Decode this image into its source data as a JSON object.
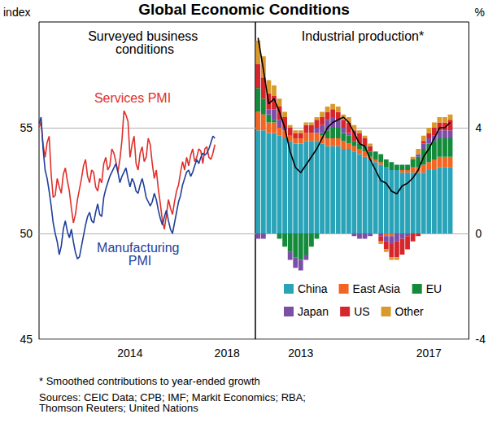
{
  "title": "Global Economic Conditions",
  "footnote": "* Smoothed contributions to year-ended growth",
  "sources": "Sources: CEIC Data; CPB; IMF; Markit Economics; RBA; Thomson Reuters; United Nations",
  "chart_data": [
    {
      "type": "line",
      "title": "Surveyed business conditions",
      "y_label": "index",
      "categories": [
        null,
        null,
        null,
        null,
        null,
        null,
        null,
        null,
        null,
        null,
        null,
        null,
        null,
        null,
        null,
        null,
        null,
        null,
        null,
        null,
        null,
        null,
        null,
        null,
        null,
        null,
        null,
        null,
        null,
        null,
        null,
        null,
        null,
        null,
        null,
        null,
        null,
        null,
        null,
        null,
        null,
        null,
        null,
        null,
        null,
        "2014",
        null,
        null,
        null,
        null,
        null,
        null,
        null,
        null,
        null,
        null,
        null,
        null,
        null,
        null,
        null,
        null,
        null,
        null,
        null,
        null,
        null,
        null,
        null,
        null,
        null,
        null,
        null,
        null,
        null,
        null,
        null,
        null,
        null,
        null,
        null,
        null,
        null,
        null,
        null,
        null,
        null,
        null,
        null,
        null,
        null,
        null,
        null,
        "2018",
        null,
        null,
        null,
        null,
        null,
        null,
        null,
        null,
        null,
        null,
        null,
        null,
        null,
        null
      ],
      "series": [
        {
          "name": "Services PMI",
          "color": "#e0302b",
          "values": [
            55.0,
            55.3,
            54.2,
            53.6,
            54.3,
            54.6,
            52.8,
            51.7,
            51.8,
            52.6,
            52.2,
            51.9,
            52.8,
            53.1,
            52.5,
            52.0,
            51.2,
            50.5,
            50.9,
            51.6,
            52.1,
            52.6,
            53.2,
            53.5,
            52.7,
            52.4,
            53.0,
            52.9,
            52.2,
            52.0,
            52.6,
            52.4,
            53.3,
            53.6,
            53.0,
            53.2,
            54.0,
            53.8,
            53.4,
            52.9,
            53.5,
            54.4,
            55.8,
            55.6,
            55.3,
            53.6,
            54.2,
            54.6,
            53.3,
            53.0,
            53.8,
            54.1,
            53.4,
            53.6,
            54.5,
            54.2,
            53.3,
            52.6,
            53.0,
            52.1,
            51.4,
            50.6,
            50.2,
            50.9,
            51.6,
            51.2,
            50.9,
            51.5,
            52.0,
            52.3,
            52.9,
            53.4,
            53.0,
            53.6,
            53.2,
            53.7,
            54.0,
            53.4,
            53.6,
            54.0,
            53.9,
            53.3,
            54.0,
            54.1,
            53.6,
            53.5,
            53.8,
            54.2,
            null,
            null,
            null,
            null,
            null,
            null,
            null,
            null,
            null,
            null,
            null,
            null,
            null,
            null,
            null,
            null,
            null,
            null,
            null,
            null
          ]
        },
        {
          "name": "Manufacturing PMI",
          "color": "#1f3f99",
          "values": [
            55.2,
            55.5,
            54.0,
            53.0,
            52.6,
            52.0,
            51.3,
            50.5,
            50.0,
            49.6,
            49.0,
            49.4,
            50.2,
            50.6,
            50.1,
            49.8,
            50.2,
            49.6,
            49.1,
            48.8,
            48.9,
            49.4,
            49.9,
            50.4,
            50.8,
            51.0,
            50.6,
            50.5,
            51.0,
            51.4,
            50.9,
            50.8,
            51.7,
            52.1,
            52.4,
            52.7,
            52.9,
            53.1,
            53.3,
            52.9,
            52.4,
            52.7,
            52.9,
            53.1,
            52.6,
            52.2,
            52.6,
            52.4,
            52.0,
            51.9,
            52.3,
            52.6,
            52.2,
            51.7,
            51.5,
            51.3,
            51.5,
            51.9,
            51.6,
            51.1,
            50.7,
            50.4,
            50.8,
            51.1,
            50.6,
            50.2,
            50.0,
            50.5,
            51.0,
            51.5,
            51.8,
            52.3,
            52.6,
            52.9,
            53.0,
            52.7,
            52.9,
            53.2,
            53.5,
            53.3,
            53.6,
            53.8,
            53.7,
            53.8,
            54.0,
            54.3,
            54.6,
            54.5,
            null,
            null,
            null,
            null,
            null,
            null,
            null,
            null,
            null,
            null,
            null,
            null,
            null,
            null,
            null,
            null,
            null,
            null,
            null,
            null
          ]
        }
      ],
      "ylim": [
        45,
        60
      ],
      "yticks": [
        45,
        50,
        55
      ],
      "grid": true
    },
    {
      "type": "bar",
      "title": "Industrial production*",
      "y_label": "%",
      "categories": [
        null,
        null,
        null,
        null,
        null,
        null,
        null,
        null,
        "2013",
        null,
        null,
        null,
        null,
        null,
        null,
        null,
        null,
        null,
        null,
        null,
        null,
        null,
        null,
        null,
        null,
        null,
        null,
        null,
        null,
        null,
        null,
        null,
        "2017",
        null,
        null,
        null,
        null,
        null,
        null,
        null
      ],
      "series": [
        {
          "name": "China",
          "color": "#29a3b8",
          "values": [
            3.9,
            3.9,
            3.8,
            3.8,
            3.7,
            3.6,
            3.5,
            3.4,
            3.4,
            3.5,
            3.5,
            3.5,
            3.4,
            3.3,
            3.3,
            3.3,
            3.2,
            3.2,
            3.1,
            3.0,
            2.9,
            2.8,
            2.7,
            2.6,
            2.5,
            2.4,
            2.4,
            2.3,
            2.3,
            2.3,
            2.3,
            2.3,
            2.4,
            2.4,
            2.5,
            2.5,
            2.5,
            null,
            null,
            null
          ]
        },
        {
          "name": "East Asia",
          "color": "#f26522",
          "values": [
            0.7,
            0.6,
            0.4,
            0.4,
            0.3,
            0.3,
            0.2,
            0.2,
            0.2,
            0.3,
            0.3,
            0.3,
            0.3,
            0.3,
            0.3,
            0.3,
            0.3,
            0.2,
            0.2,
            0.2,
            0.2,
            0.1,
            0.1,
            0.1,
            -0.1,
            -0.1,
            0.0,
            0.1,
            0.1,
            0.2,
            0.2,
            0.3,
            0.3,
            0.4,
            0.4,
            0.4,
            0.4,
            null,
            null,
            null
          ]
        },
        {
          "name": "EU",
          "color": "#138b3b",
          "values": [
            0.9,
            0.6,
            0.3,
            0.1,
            -0.2,
            -0.5,
            -0.7,
            -0.9,
            -1.0,
            -0.8,
            -0.5,
            -0.2,
            0.1,
            0.3,
            0.4,
            0.4,
            0.3,
            0.3,
            0.2,
            0.2,
            0.2,
            0.2,
            0.3,
            0.3,
            0.3,
            0.3,
            0.2,
            0.2,
            0.2,
            0.3,
            0.4,
            0.6,
            0.7,
            0.7,
            0.7,
            0.7,
            0.7,
            null,
            null,
            null
          ]
        },
        {
          "name": "Japan",
          "color": "#7b4ea8",
          "values": [
            -0.2,
            -0.2,
            0.2,
            0.4,
            0.3,
            0.1,
            -0.3,
            -0.4,
            -0.4,
            -0.2,
            0.0,
            0.2,
            0.3,
            0.4,
            0.4,
            0.3,
            0.2,
            0.1,
            -0.1,
            -0.2,
            -0.2,
            -0.1,
            0.0,
            -0.1,
            -0.2,
            -0.3,
            -0.3,
            -0.2,
            -0.1,
            0.0,
            0.1,
            0.2,
            0.2,
            0.2,
            0.3,
            0.3,
            0.3,
            null,
            null,
            null
          ]
        },
        {
          "name": "US",
          "color": "#d7262b",
          "values": [
            0.9,
            0.8,
            0.6,
            0.5,
            0.5,
            0.4,
            0.3,
            0.2,
            0.2,
            0.3,
            0.3,
            0.3,
            0.3,
            0.3,
            0.3,
            0.3,
            0.3,
            0.4,
            0.4,
            0.4,
            0.3,
            0.2,
            0.0,
            -0.2,
            -0.3,
            -0.5,
            -0.6,
            -0.6,
            -0.5,
            -0.3,
            -0.1,
            0.1,
            0.2,
            0.3,
            0.3,
            0.3,
            0.4,
            null,
            null,
            null
          ]
        },
        {
          "name": "Other",
          "color": "#d99a2b",
          "values": [
            0.9,
            0.8,
            0.5,
            0.4,
            0.3,
            0.2,
            0.1,
            0.1,
            0.1,
            0.1,
            0.1,
            0.1,
            0.2,
            0.2,
            0.2,
            0.2,
            0.2,
            0.2,
            0.2,
            0.1,
            0.1,
            0.1,
            0.0,
            -0.1,
            -0.1,
            -0.1,
            -0.1,
            0.0,
            0.0,
            0.1,
            0.2,
            0.2,
            0.2,
            0.2,
            0.2,
            0.2,
            0.2,
            null,
            null,
            null
          ]
        },
        {
          "type": "line",
          "color": "#000000",
          "values": [
            7.4,
            6.2,
            4.9,
            5.1,
            4.6,
            4.0,
            3.1,
            2.5,
            2.3,
            2.6,
            2.9,
            3.2,
            3.6,
            4.0,
            4.2,
            4.3,
            4.4,
            4.2,
            3.8,
            3.4,
            3.3,
            2.8,
            2.4,
            2.0,
            1.9,
            1.6,
            1.5,
            1.8,
            1.9,
            2.1,
            2.4,
            2.9,
            3.2,
            3.6,
            4.0,
            4.0,
            4.2,
            null,
            null,
            null
          ]
        }
      ],
      "stacked": true,
      "ylim": [
        -4,
        8
      ],
      "yticks": [
        -4,
        0,
        4
      ],
      "grid": true,
      "legend": "bottom"
    }
  ]
}
